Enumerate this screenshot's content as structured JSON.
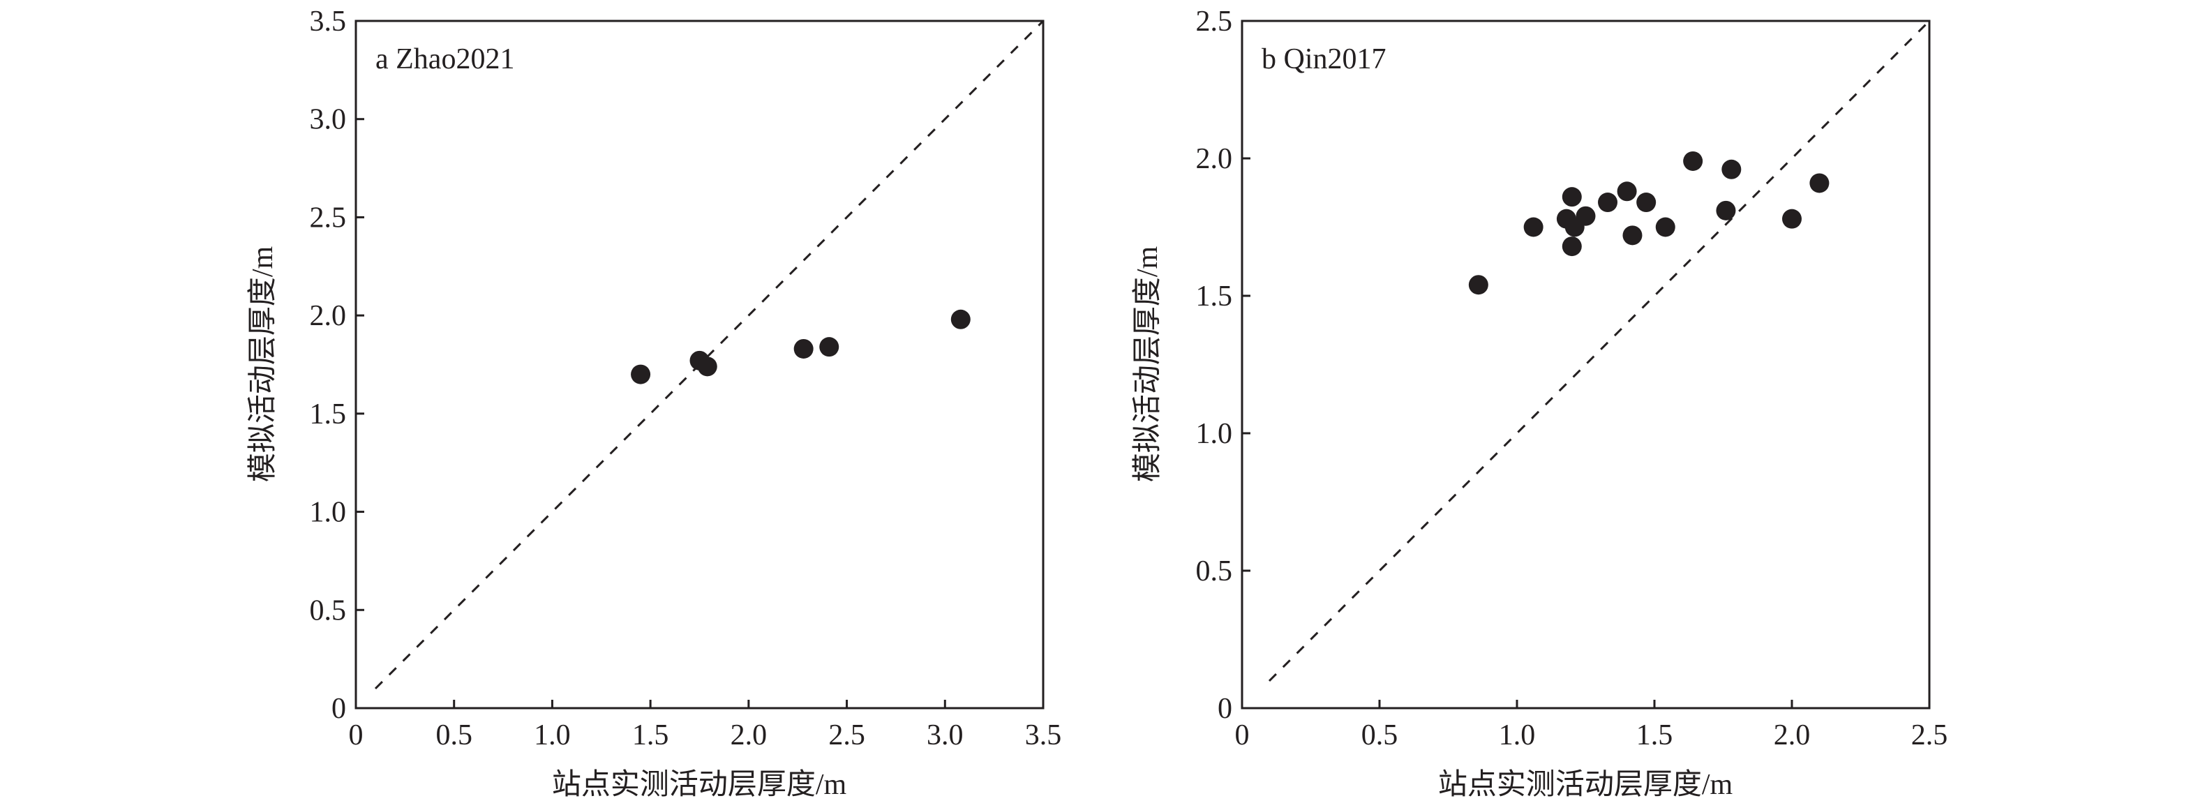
{
  "figure": {
    "background": "#ffffff",
    "ink_color": "#231f20"
  },
  "chart_data": [
    {
      "type": "scatter",
      "panel_label": "a Zhao2021",
      "xlabel": "站点实测活动层厚度/m",
      "ylabel": "模拟活动层厚度/m",
      "xlim": [
        0,
        3.5
      ],
      "ylim": [
        0,
        3.5
      ],
      "xticks": [
        "0",
        "0.5",
        "1.0",
        "1.5",
        "2.0",
        "2.5",
        "3.0",
        "3.5"
      ],
      "yticks": [
        "0",
        "0.5",
        "1.0",
        "1.5",
        "2.0",
        "2.5",
        "3.0",
        "3.5"
      ],
      "reference_line": "1:1 dashed",
      "grid": false,
      "marker_color": "#231f20",
      "points": [
        {
          "x": 1.45,
          "y": 1.7
        },
        {
          "x": 1.75,
          "y": 1.77
        },
        {
          "x": 1.79,
          "y": 1.74
        },
        {
          "x": 2.28,
          "y": 1.83
        },
        {
          "x": 2.41,
          "y": 1.84
        },
        {
          "x": 3.08,
          "y": 1.98
        }
      ]
    },
    {
      "type": "scatter",
      "panel_label": "b Qin2017",
      "xlabel": "站点实测活动层厚度/m",
      "ylabel": "模拟活动层厚度/m",
      "xlim": [
        0,
        2.5
      ],
      "ylim": [
        0,
        2.5
      ],
      "xticks": [
        "0",
        "0.5",
        "1.0",
        "1.5",
        "2.0",
        "2.5"
      ],
      "yticks": [
        "0",
        "0.5",
        "1.0",
        "1.5",
        "2.0",
        "2.5"
      ],
      "reference_line": "1:1 dashed",
      "grid": false,
      "marker_color": "#231f20",
      "points": [
        {
          "x": 0.86,
          "y": 1.54
        },
        {
          "x": 1.06,
          "y": 1.75
        },
        {
          "x": 1.18,
          "y": 1.78
        },
        {
          "x": 1.2,
          "y": 1.86
        },
        {
          "x": 1.21,
          "y": 1.75
        },
        {
          "x": 1.2,
          "y": 1.68
        },
        {
          "x": 1.25,
          "y": 1.79
        },
        {
          "x": 1.33,
          "y": 1.84
        },
        {
          "x": 1.4,
          "y": 1.88
        },
        {
          "x": 1.42,
          "y": 1.72
        },
        {
          "x": 1.47,
          "y": 1.84
        },
        {
          "x": 1.54,
          "y": 1.75
        },
        {
          "x": 1.64,
          "y": 1.99
        },
        {
          "x": 1.76,
          "y": 1.81
        },
        {
          "x": 1.78,
          "y": 1.96
        },
        {
          "x": 2.0,
          "y": 1.78
        },
        {
          "x": 2.1,
          "y": 1.91
        }
      ]
    }
  ]
}
